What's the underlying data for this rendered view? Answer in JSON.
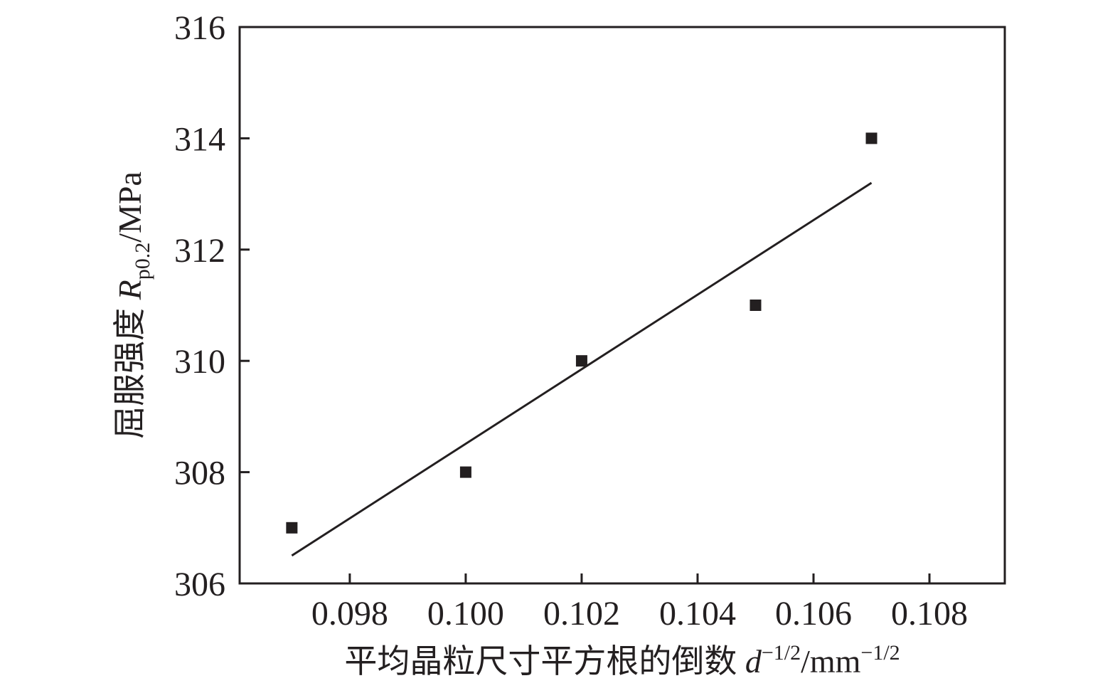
{
  "chart_data": {
    "type": "scatter",
    "title": "",
    "xlabel": {
      "text": "平均晶粒尺寸平方根的倒数 ",
      "var": "d",
      "var_sup": "−1/2",
      "unit": "/mm",
      "unit_sup": "−1/2"
    },
    "ylabel": {
      "text": "屈服强度 ",
      "var": "R",
      "var_sub": "p0.2",
      "unit": "/MPa"
    },
    "xlim": [
      0.0961,
      0.1093
    ],
    "ylim": [
      306,
      316
    ],
    "xticks": [
      0.098,
      0.1,
      0.102,
      0.104,
      0.106,
      0.108
    ],
    "xtick_labels": [
      "0.098",
      "0.100",
      "0.102",
      "0.104",
      "0.106",
      "0.108"
    ],
    "yticks": [
      306,
      308,
      310,
      312,
      314,
      316
    ],
    "ytick_labels": [
      "306",
      "308",
      "310",
      "312",
      "314",
      "316"
    ],
    "grid": false,
    "series": [
      {
        "type": "scatter",
        "marker": "square",
        "color": "#231f20",
        "x": [
          0.097,
          0.1,
          0.102,
          0.105,
          0.107
        ],
        "y": [
          307,
          308,
          310,
          311,
          314
        ]
      },
      {
        "type": "line",
        "color": "#231f20",
        "x": [
          0.097,
          0.107
        ],
        "y": [
          306.5,
          313.2
        ]
      }
    ]
  }
}
